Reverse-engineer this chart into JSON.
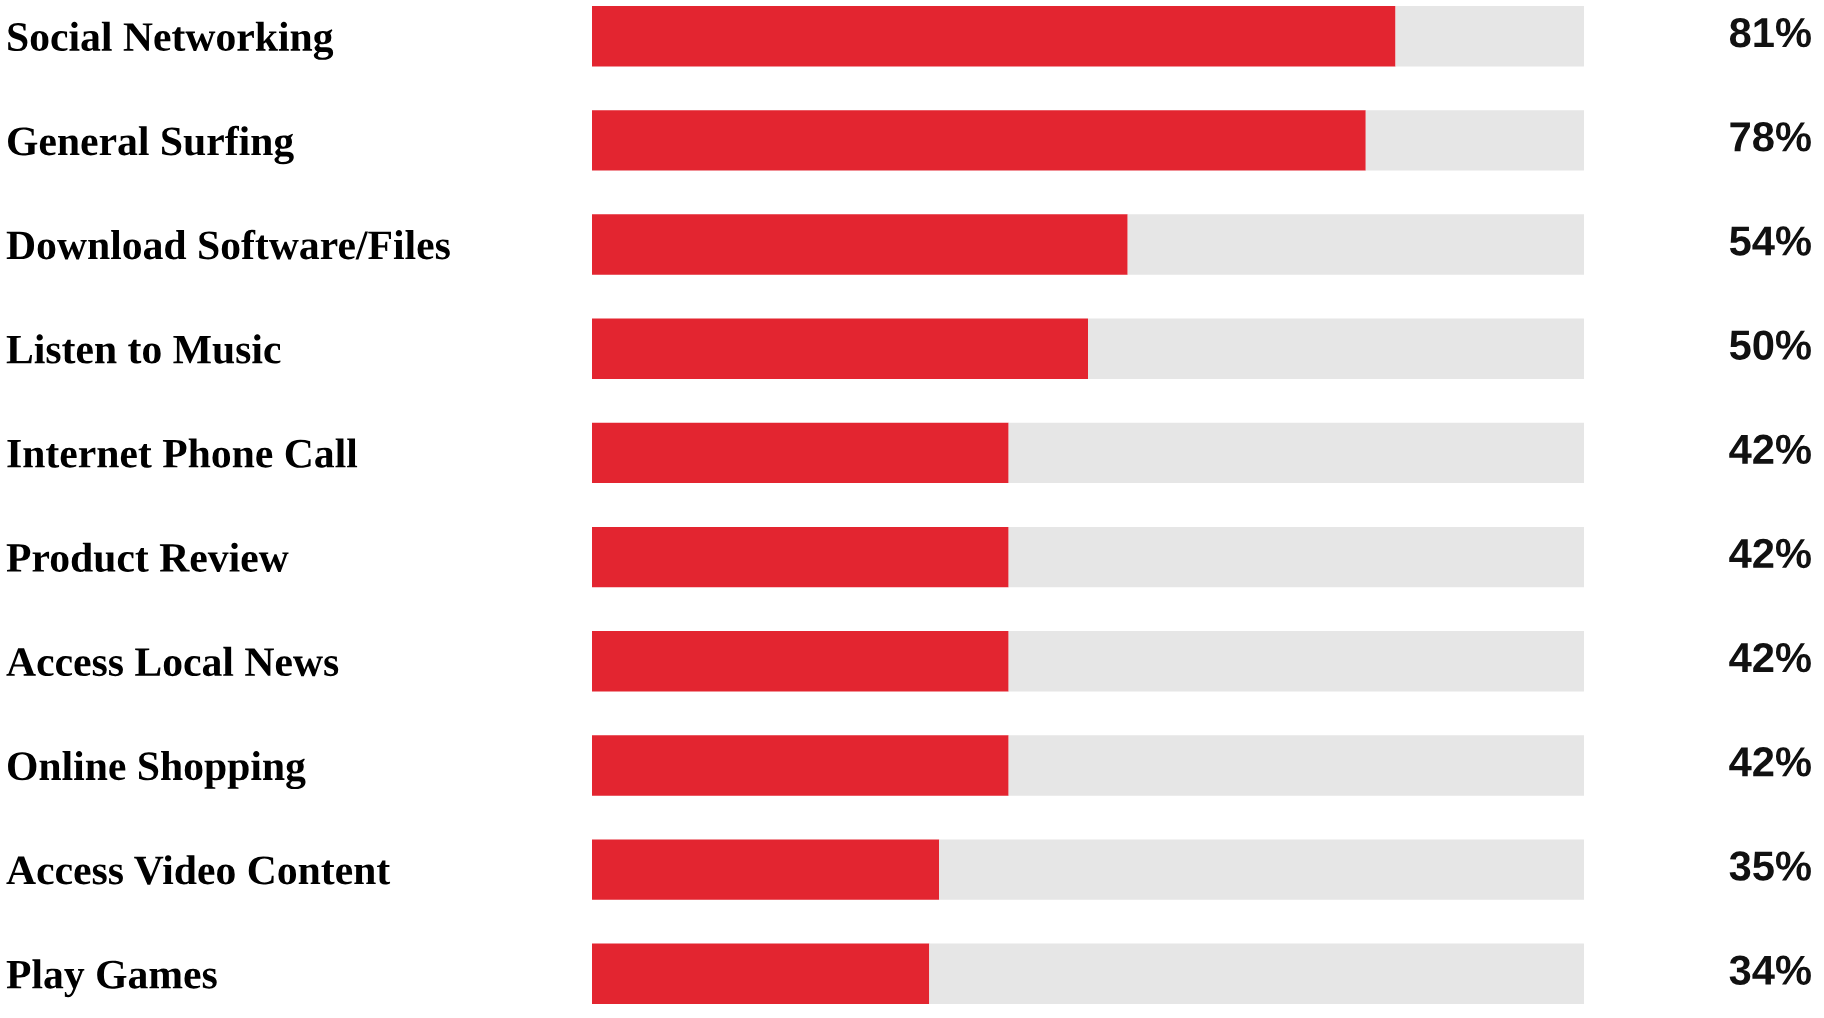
{
  "chart_data": {
    "type": "bar",
    "orientation": "horizontal",
    "stacked": true,
    "categories": [
      "Social Networking",
      "General Surfing",
      "Download Software/Files",
      "Listen to Music",
      "Internet Phone Call",
      "Product Review",
      "Access Local News",
      "Online Shopping",
      "Access Video Content",
      "Play Games"
    ],
    "series": [
      {
        "color": "#e32530",
        "values": [
          81,
          78,
          54,
          50,
          42,
          42,
          42,
          42,
          35,
          34
        ],
        "value_labels": [
          "81%",
          "78%",
          "54%",
          "50%",
          "42%",
          "42%",
          "42%",
          "42%",
          "35%",
          "34%"
        ]
      },
      {
        "color": "#e6e6e6",
        "values": [
          19,
          22,
          46,
          50,
          58,
          58,
          58,
          58,
          65,
          66
        ]
      }
    ],
    "xlim": [
      0,
      100
    ],
    "tick_labels": "y",
    "grid": false,
    "legend": false
  }
}
